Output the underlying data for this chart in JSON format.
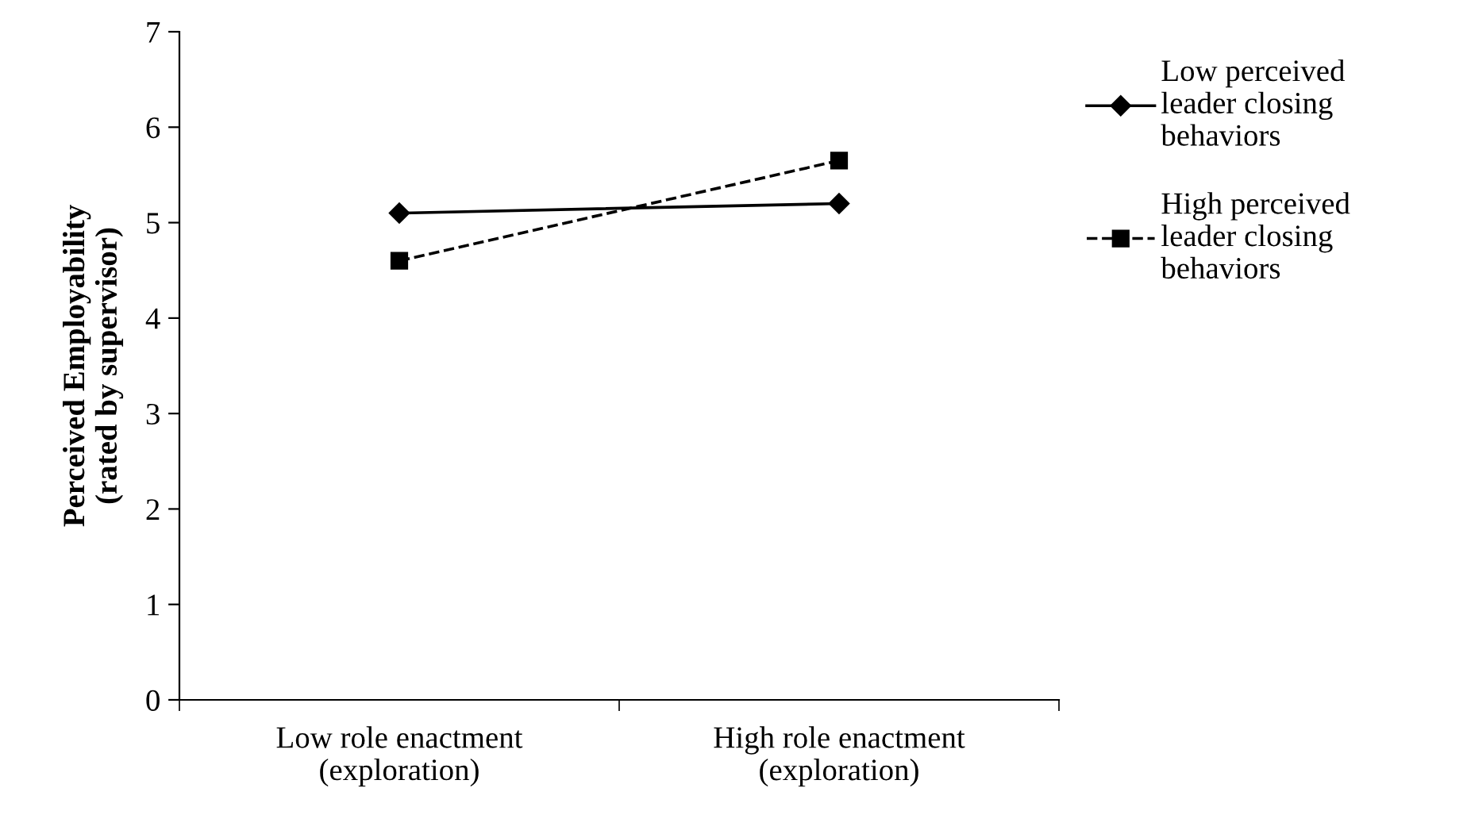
{
  "chart_data": {
    "type": "line",
    "ylabel": "Perceived Employability\n(rated by supervisor)",
    "categories": [
      "Low role enactment\n(exploration)",
      "High role enactment\n(exploration)"
    ],
    "series": [
      {
        "name": "Low perceived leader closing behaviors",
        "color": "#000000",
        "values": [
          5.1,
          5.2
        ],
        "marker": "diamond",
        "line_style": "solid"
      },
      {
        "name": "High perceived leader closing behaviors",
        "color": "#000000",
        "values": [
          4.6,
          5.65
        ],
        "marker": "square",
        "line_style": "dashed"
      }
    ],
    "ylim": [
      0,
      7
    ],
    "yticks": [
      0,
      1,
      2,
      3,
      4,
      5,
      6,
      7
    ],
    "grid": false,
    "legend": "right"
  }
}
